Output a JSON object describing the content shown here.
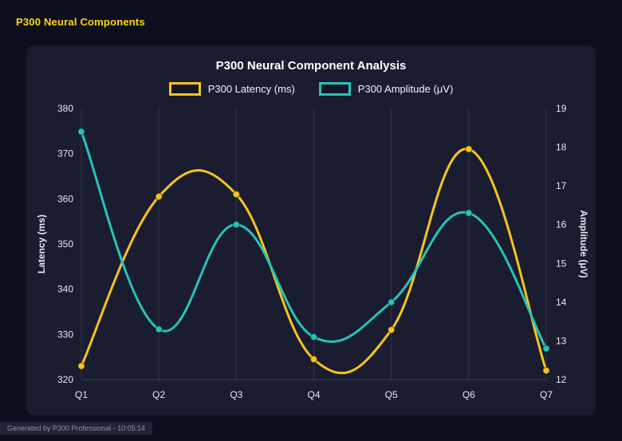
{
  "header": {
    "title": "P300 Neural Components"
  },
  "footer": {
    "text": "Generated by P300 Professional - 10:05:14"
  },
  "colors": {
    "background": "#0e0f1e",
    "panel": "#1a1c30",
    "accent_yellow": "#f5c51b",
    "accent_teal": "#25c4b8",
    "header_text": "#ffd60a"
  },
  "chart_data": {
    "type": "line",
    "title": "P300 Neural Component Analysis",
    "categories": [
      "Q1",
      "Q2",
      "Q3",
      "Q4",
      "Q5",
      "Q6",
      "Q7"
    ],
    "series": [
      {
        "name": "P300 Latency (ms)",
        "axis": "left",
        "color": "#f5c51b",
        "values": [
          323,
          360.5,
          361,
          324.5,
          331,
          371,
          322
        ]
      },
      {
        "name": "P300 Amplitude (μV)",
        "axis": "right",
        "color": "#25c4b8",
        "values": [
          18.4,
          13.3,
          16.0,
          13.1,
          14.0,
          16.3,
          12.8
        ]
      }
    ],
    "left_axis": {
      "label": "Latency (ms)",
      "min": 320,
      "max": 380,
      "ticks": [
        320,
        330,
        340,
        350,
        360,
        370,
        380
      ]
    },
    "right_axis": {
      "label": "Amplitude (μV)",
      "min": 12,
      "max": 19,
      "ticks": [
        12,
        13,
        14,
        15,
        16,
        17,
        18,
        19
      ]
    },
    "grid": "vertical",
    "legend_position": "top"
  }
}
